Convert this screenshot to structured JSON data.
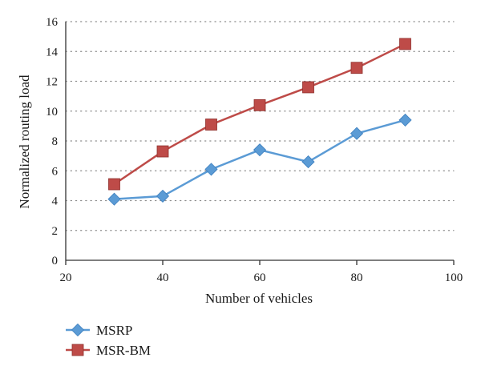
{
  "chart_data": {
    "type": "line",
    "title": "",
    "xlabel": "Number of vehicles",
    "ylabel": "Normalized routing load",
    "xlim": [
      20,
      100
    ],
    "ylim": [
      0,
      16
    ],
    "xticks": [
      20,
      40,
      60,
      80,
      100
    ],
    "yticks": [
      0,
      2,
      4,
      6,
      8,
      10,
      12,
      14,
      16
    ],
    "grid": "horizontal dotted",
    "legend_position": "bottom-left",
    "x": [
      30,
      40,
      50,
      60,
      70,
      80,
      90
    ],
    "series": [
      {
        "name": "MSRP",
        "values": [
          4.1,
          4.3,
          6.1,
          7.4,
          6.6,
          8.5,
          9.4
        ],
        "color": "#5b9bd5",
        "marker": "diamond"
      },
      {
        "name": "MSR-BM",
        "values": [
          5.1,
          7.3,
          9.1,
          10.4,
          11.6,
          12.9,
          14.5
        ],
        "color": "#be4b48",
        "marker": "square"
      }
    ]
  }
}
